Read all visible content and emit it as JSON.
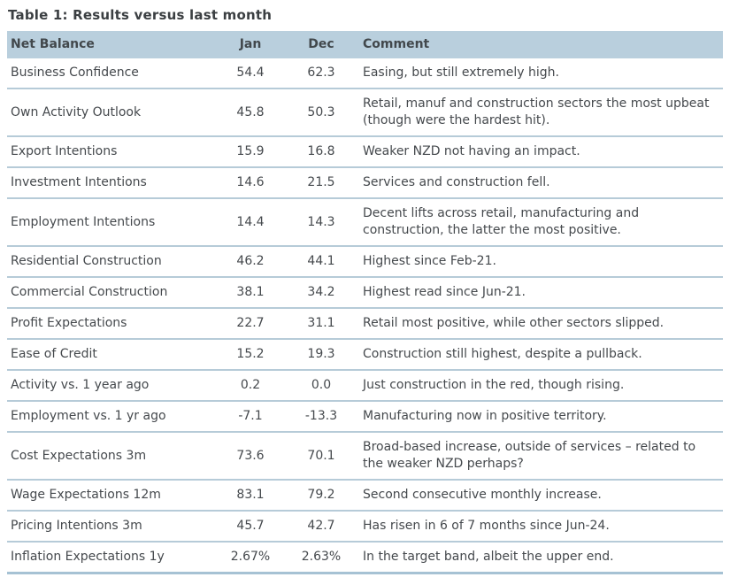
{
  "chart_data": {
    "type": "table",
    "title": "Table 1: Results versus last month",
    "columns": [
      "Net Balance",
      "Jan",
      "Dec",
      "Comment"
    ],
    "rows": [
      {
        "name": "Business Confidence",
        "jan": "54.4",
        "dec": "62.3",
        "comment": "Easing, but still extremely high."
      },
      {
        "name": "Own Activity Outlook",
        "jan": "45.8",
        "dec": "50.3",
        "comment": "Retail, manuf and construction sectors the most upbeat (though were the hardest hit)."
      },
      {
        "name": "Export Intentions",
        "jan": "15.9",
        "dec": "16.8",
        "comment": "Weaker NZD not having an impact."
      },
      {
        "name": "Investment Intentions",
        "jan": "14.6",
        "dec": "21.5",
        "comment": "Services and construction fell."
      },
      {
        "name": "Employment Intentions",
        "jan": "14.4",
        "dec": "14.3",
        "comment": "Decent lifts across retail, manufacturing and construction, the latter the most positive."
      },
      {
        "name": "Residential Construction",
        "jan": "46.2",
        "dec": "44.1",
        "comment": "Highest since Feb-21."
      },
      {
        "name": "Commercial Construction",
        "jan": "38.1",
        "dec": "34.2",
        "comment": "Highest read since Jun-21."
      },
      {
        "name": "Profit Expectations",
        "jan": "22.7",
        "dec": "31.1",
        "comment": "Retail most positive, while other sectors slipped."
      },
      {
        "name": "Ease of Credit",
        "jan": "15.2",
        "dec": "19.3",
        "comment": "Construction still highest, despite a pullback."
      },
      {
        "name": "Activity vs. 1 year ago",
        "jan": "0.2",
        "dec": "0.0",
        "comment": "Just construction in the red, though rising."
      },
      {
        "name": "Employment vs. 1 yr ago",
        "jan": "-7.1",
        "dec": "-13.3",
        "comment": "Manufacturing now in positive territory."
      },
      {
        "name": "Cost Expectations 3m",
        "jan": "73.6",
        "dec": "70.1",
        "comment": "Broad-based increase, outside of services – related to the weaker NZD perhaps?"
      },
      {
        "name": "Wage Expectations 12m",
        "jan": "83.1",
        "dec": "79.2",
        "comment": "Second consecutive monthly increase."
      },
      {
        "name": "Pricing Intentions 3m",
        "jan": "45.7",
        "dec": "42.7",
        "comment": "Has risen in 6 of 7 months since Jun-24."
      },
      {
        "name": "Inflation Expectations 1y",
        "jan": "2.67%",
        "dec": "2.63%",
        "comment": "In the target band, albeit the upper end."
      }
    ]
  },
  "colors": {
    "header_background": "#b9cfdd",
    "row_divider": "#b6cbd8",
    "bottom_border": "#a6c2d4",
    "text": "#45494d",
    "title_text": "#3b3f42"
  }
}
